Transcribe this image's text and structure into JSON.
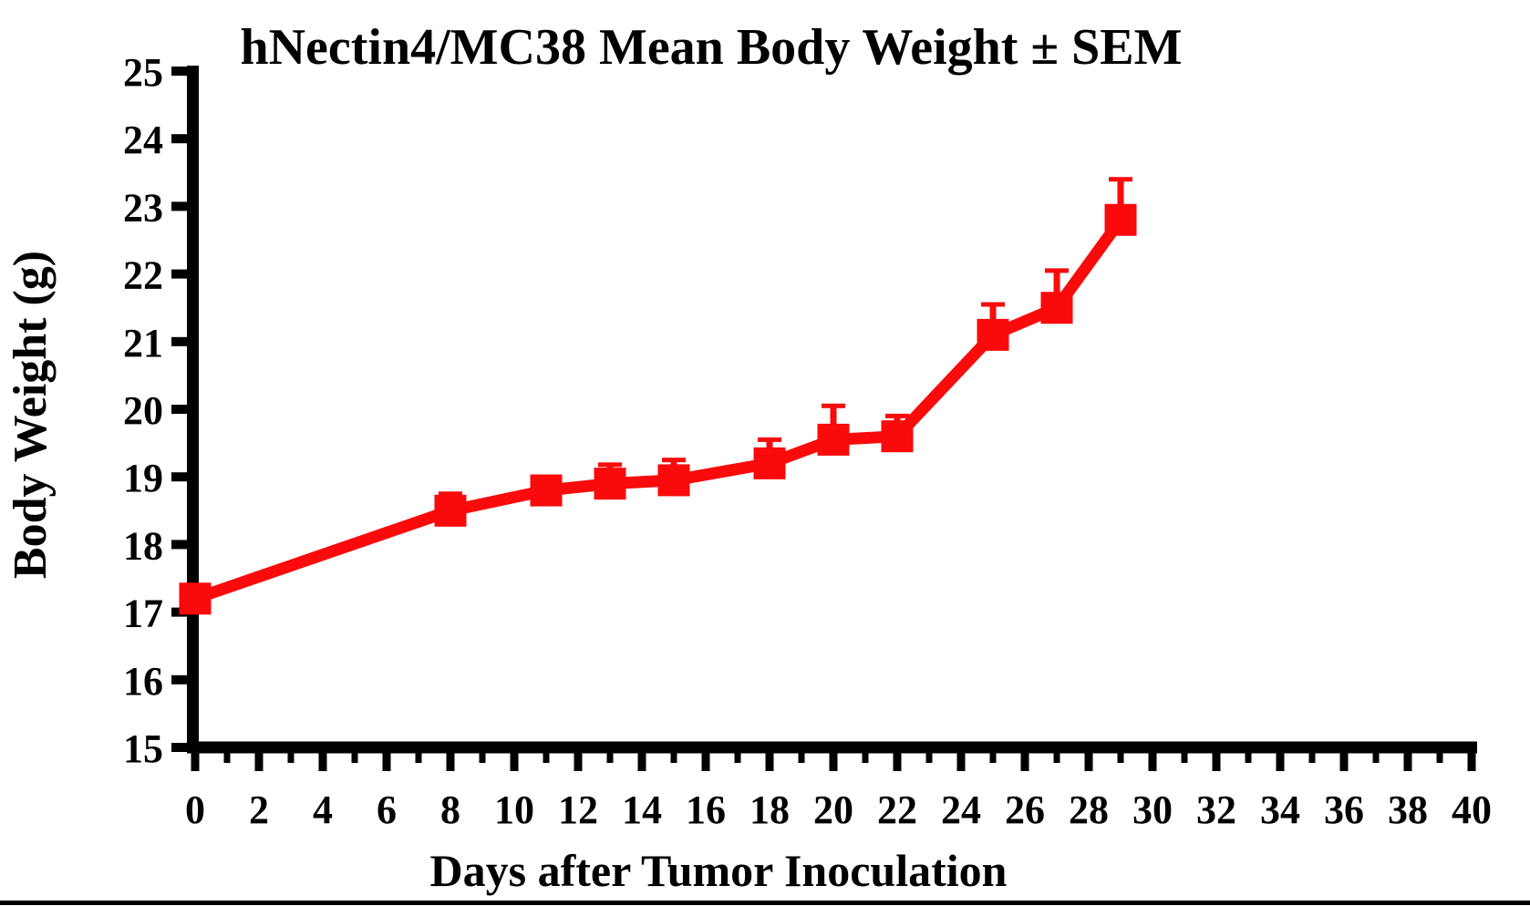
{
  "figure": {
    "background_color": "#ffffff",
    "bottom_rule_color": "#000000"
  },
  "chart_data": {
    "type": "line",
    "title": "hNectin4/MC38 Mean Body Weight ± SEM",
    "xlabel": "Days after Tumor Inoculation",
    "ylabel": "Body Weight (g)",
    "xlim": [
      0,
      40
    ],
    "ylim": [
      15,
      25
    ],
    "grid": false,
    "legend": false,
    "x_tick_labels": [
      "0",
      "2",
      "4",
      "6",
      "8",
      "10",
      "12",
      "14",
      "16",
      "18",
      "20",
      "22",
      "24",
      "26",
      "28",
      "30",
      "32",
      "34",
      "36",
      "38",
      "40"
    ],
    "x_minor_ticks": [
      1,
      3,
      5,
      7,
      9,
      11,
      13,
      15,
      17,
      19,
      21,
      23,
      25,
      27,
      29,
      31,
      33,
      35,
      37,
      39
    ],
    "y_tick_labels": [
      "15",
      "16",
      "17",
      "18",
      "19",
      "20",
      "21",
      "22",
      "23",
      "24",
      "25"
    ],
    "series": [
      {
        "color": "#FA0A0A",
        "marker": "square",
        "x": [
          0,
          8,
          11,
          13,
          15,
          18,
          20,
          22,
          25,
          27,
          29
        ],
        "y": [
          17.2,
          18.5,
          18.8,
          18.9,
          18.95,
          19.2,
          19.55,
          19.6,
          21.1,
          21.5,
          22.8
        ],
        "sem_upper": [
          0,
          0.25,
          0,
          0.28,
          0.3,
          0.35,
          0.5,
          0.3,
          0.45,
          0.55,
          0.6
        ]
      }
    ]
  }
}
